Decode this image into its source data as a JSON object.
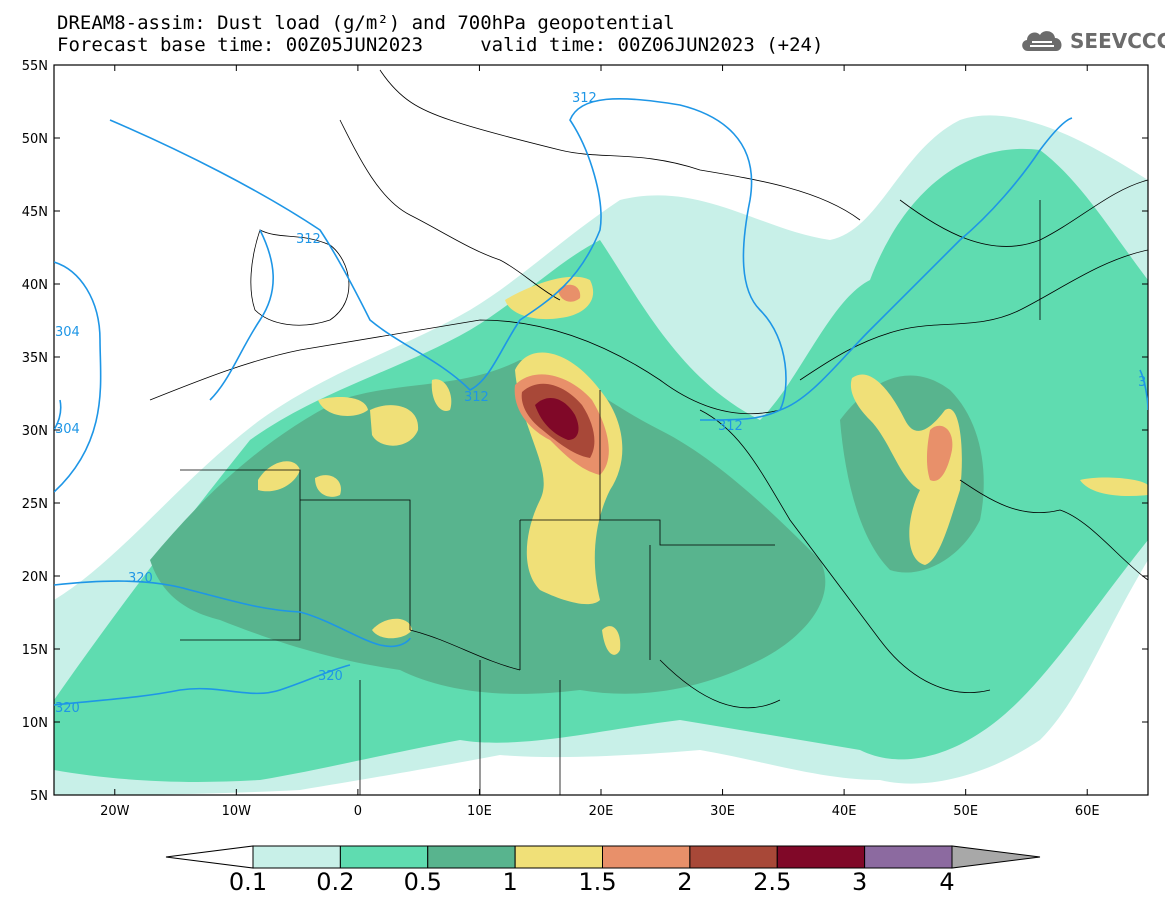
{
  "header": {
    "title_line1": "DREAM8-assim: Dust load (g/m²) and 700hPa geopotential",
    "title_line2": "Forecast base time: 00Z05JUN2023     valid time: 00Z06JUN2023 (+24)",
    "logo_text": "SEEVCCC"
  },
  "map": {
    "lon_range": [
      -25,
      65
    ],
    "lat_range": [
      5,
      55
    ],
    "lat_labels": [
      "55N",
      "50N",
      "45N",
      "40N",
      "35N",
      "30N",
      "25N",
      "20N",
      "15N",
      "10N",
      "5N"
    ],
    "lon_labels": [
      "20W",
      "10W",
      "0",
      "10E",
      "20E",
      "30E",
      "40E",
      "50E",
      "60E"
    ],
    "contour_labels": [
      "312",
      "312",
      "312",
      "312",
      "320",
      "320",
      "320",
      "304",
      "304",
      "3"
    ]
  },
  "colorbar": {
    "levels": [
      "0.1",
      "0.2",
      "0.5",
      "1",
      "1.5",
      "2",
      "2.5",
      "3",
      "4"
    ],
    "colors": [
      "#c8f0e8",
      "#5fdcb0",
      "#58b48e",
      "#f0e078",
      "#e8906a",
      "#a84838",
      "#800828",
      "#8c6aa0",
      "#a8a8a8"
    ]
  },
  "colors": {
    "dust_light": "#c8f0e8",
    "dust_mid": "#5fdcb0",
    "dust_dark": "#58b48e",
    "dust_yellow": "#f0e078",
    "dust_orange": "#e8906a",
    "dust_brown": "#a84838",
    "dust_maroon": "#800828",
    "contour": "#1e96e6"
  }
}
